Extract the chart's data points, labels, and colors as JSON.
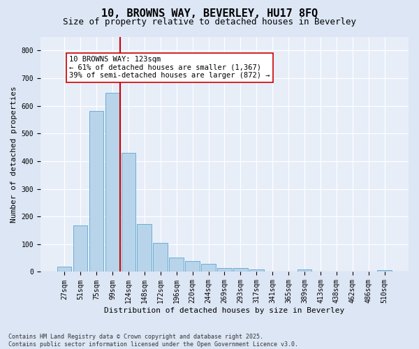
{
  "title1": "10, BROWNS WAY, BEVERLEY, HU17 8FQ",
  "title2": "Size of property relative to detached houses in Beverley",
  "xlabel": "Distribution of detached houses by size in Beverley",
  "ylabel": "Number of detached properties",
  "bar_labels": [
    "27sqm",
    "51sqm",
    "75sqm",
    "99sqm",
    "124sqm",
    "148sqm",
    "172sqm",
    "196sqm",
    "220sqm",
    "244sqm",
    "269sqm",
    "293sqm",
    "317sqm",
    "341sqm",
    "365sqm",
    "389sqm",
    "413sqm",
    "438sqm",
    "462sqm",
    "486sqm",
    "510sqm"
  ],
  "bar_values": [
    18,
    168,
    582,
    648,
    430,
    172,
    104,
    52,
    38,
    30,
    14,
    14,
    10,
    0,
    0,
    8,
    0,
    0,
    0,
    0,
    6
  ],
  "bar_color": "#b8d4ea",
  "bar_edge_color": "#6aaed6",
  "vline_color": "#cc0000",
  "annotation_text": "10 BROWNS WAY: 123sqm\n← 61% of detached houses are smaller (1,367)\n39% of semi-detached houses are larger (872) →",
  "annotation_box_color": "#ffffff",
  "annotation_box_edge": "#cc0000",
  "ylim": [
    0,
    850
  ],
  "yticks": [
    0,
    100,
    200,
    300,
    400,
    500,
    600,
    700,
    800
  ],
  "bg_color": "#dce6f5",
  "plot_bg_color": "#e8eef8",
  "grid_color": "#ffffff",
  "footer": "Contains HM Land Registry data © Crown copyright and database right 2025.\nContains public sector information licensed under the Open Government Licence v3.0.",
  "title_fontsize": 11,
  "subtitle_fontsize": 9,
  "axis_label_fontsize": 8,
  "tick_fontsize": 7,
  "annotation_fontsize": 7.5,
  "footer_fontsize": 6
}
